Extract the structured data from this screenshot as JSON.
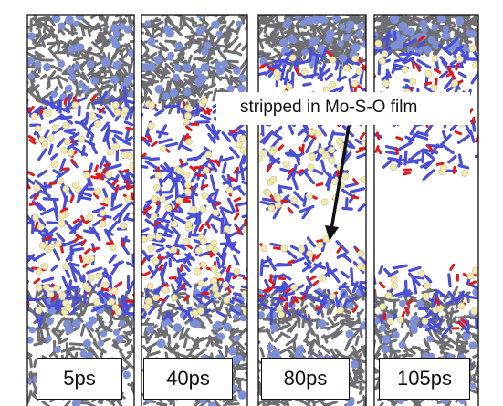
{
  "panels": [
    {
      "label": "5ps"
    },
    {
      "label": "40ps"
    },
    {
      "label": "80ps"
    },
    {
      "label": "105ps"
    }
  ],
  "annotation": "stripped in Mo-S-O film",
  "colors": {
    "substrate": "#6f6f73",
    "substrate_atom": "#7f8fd6",
    "sulfur_bond": "#4a4fd6",
    "sulfur_atom": "#f2eab0",
    "oxygen": "#e01a1a",
    "frame": "#111111"
  }
}
